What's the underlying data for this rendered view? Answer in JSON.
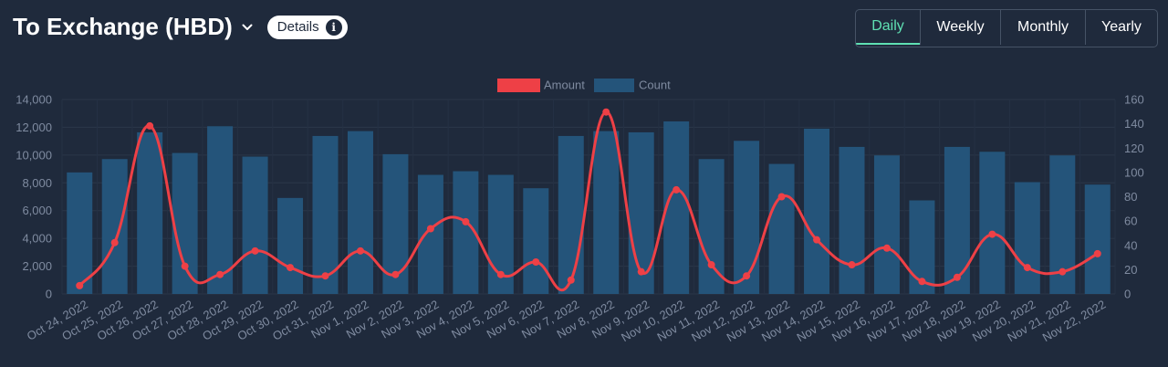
{
  "header": {
    "title": "To Exchange (HBD)",
    "details_label": "Details",
    "icons": {
      "dropdown": "chevron-down-icon",
      "info": "info-icon"
    }
  },
  "tabs": [
    {
      "label": "Daily",
      "active": true
    },
    {
      "label": "Weekly",
      "active": false
    },
    {
      "label": "Monthly",
      "active": false
    },
    {
      "label": "Yearly",
      "active": false
    }
  ],
  "colors": {
    "amount": "#ee4046",
    "count": "#24547a",
    "active_tab": "#5fe0b3",
    "background": "#1f2a3c"
  },
  "chart_data": {
    "type": "bar",
    "categories": [
      "Oct 24, 2022",
      "Oct 25, 2022",
      "Oct 26, 2022",
      "Oct 27, 2022",
      "Oct 28, 2022",
      "Oct 29, 2022",
      "Oct 30, 2022",
      "Oct 31, 2022",
      "Nov 1, 2022",
      "Nov 2, 2022",
      "Nov 3, 2022",
      "Nov 4, 2022",
      "Nov 5, 2022",
      "Nov 6, 2022",
      "Nov 7, 2022",
      "Nov 8, 2022",
      "Nov 9, 2022",
      "Nov 10, 2022",
      "Nov 11, 2022",
      "Nov 12, 2022",
      "Nov 13, 2022",
      "Nov 14, 2022",
      "Nov 15, 2022",
      "Nov 16, 2022",
      "Nov 17, 2022",
      "Nov 18, 2022",
      "Nov 19, 2022",
      "Nov 20, 2022",
      "Nov 21, 2022",
      "Nov 22, 2022"
    ],
    "series": [
      {
        "name": "Amount",
        "type": "line",
        "axis": "left",
        "values": [
          600,
          3700,
          12100,
          2000,
          1400,
          3100,
          1900,
          1300,
          3100,
          1400,
          4700,
          5200,
          1400,
          2300,
          1000,
          13100,
          1600,
          7500,
          2100,
          1300,
          7000,
          3900,
          2100,
          3300,
          900,
          1200,
          4300,
          1900,
          1600,
          2900
        ]
      },
      {
        "name": "Count",
        "type": "bar",
        "axis": "right",
        "values": [
          100,
          111,
          133,
          116,
          138,
          113,
          79,
          130,
          134,
          115,
          98,
          101,
          98,
          87,
          130,
          134,
          133,
          142,
          111,
          126,
          107,
          136,
          121,
          114,
          77,
          121,
          117,
          92,
          114,
          90
        ]
      }
    ],
    "left_axis": {
      "ylim": [
        0,
        14000
      ],
      "ticks": [
        "0",
        "2,000",
        "4,000",
        "6,000",
        "8,000",
        "10,000",
        "12,000",
        "14,000"
      ]
    },
    "right_axis": {
      "ylim": [
        0,
        160
      ],
      "ticks": [
        "0",
        "20",
        "40",
        "60",
        "80",
        "100",
        "120",
        "140",
        "160"
      ]
    },
    "legend": {
      "position": "top-center",
      "items": [
        "Amount",
        "Count"
      ]
    },
    "grid": true
  }
}
